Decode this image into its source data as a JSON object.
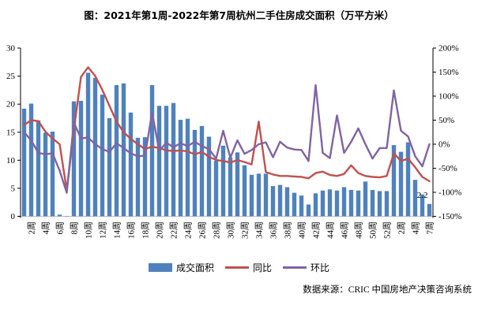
{
  "title": "图：2021年第1周-2022年第7周杭州二手住房成交面积（万平方米）",
  "source": "数据来源：CRIC 中国房地产决策咨询系统",
  "colors": {
    "bar": "#4F81BD",
    "yoy_line": "#C0504D",
    "wow_line": "#8064A2",
    "axis": "#000000",
    "baseline": "#bfbfbf"
  },
  "legend": [
    {
      "label": "成交面积",
      "type": "bar"
    },
    {
      "label": "同比",
      "type": "line"
    },
    {
      "label": "环比",
      "type": "line"
    }
  ],
  "chart_data": {
    "type": "bar",
    "title": "图：2021年第1周-2022年第7周杭州二手住房成交面积（万平方米）",
    "categories": [
      "2021-01",
      "2021-02",
      "2021-03",
      "2021-04",
      "2021-05",
      "2021-06",
      "2021-07",
      "2021-08",
      "2021-09",
      "2021-10",
      "2021-11",
      "2021-12",
      "2021-13",
      "2021-14",
      "2021-15",
      "2021-16",
      "2021-17",
      "2021-18",
      "2021-19",
      "2021-20",
      "2021-21",
      "2021-22",
      "2021-23",
      "2021-24",
      "2021-25",
      "2021-26",
      "2021-27",
      "2021-28",
      "2021-29",
      "2021-30",
      "2021-31",
      "2021-32",
      "2021-33",
      "2021-34",
      "2021-35",
      "2021-36",
      "2021-37",
      "2021-38",
      "2021-39",
      "2021-40",
      "2021-41",
      "2021-42",
      "2021-43",
      "2021-44",
      "2021-45",
      "2021-46",
      "2021-47",
      "2021-48",
      "2021-49",
      "2021-50",
      "2021-51",
      "2021-52",
      "2022-01",
      "2022-02",
      "2022-03",
      "2022-04",
      "2022-06",
      "2022-07"
    ],
    "x_tick_labels": [
      "2周",
      "4周",
      "6周",
      "8周",
      "10周",
      "12周",
      "14周",
      "16周",
      "18周",
      "20周",
      "22周",
      "24周",
      "26周",
      "28周",
      "30周",
      "32周",
      "34周",
      "36周",
      "38周",
      "40周",
      "42周",
      "44周",
      "46周",
      "48周",
      "50周",
      "52周",
      "2周",
      "4周",
      "7周"
    ],
    "series": [
      {
        "name": "成交面积",
        "type": "bar",
        "axis": "left",
        "values": [
          19.2,
          20.1,
          17.1,
          14.9,
          15.1,
          0.3,
          0.05,
          20.5,
          20.6,
          25.6,
          24.7,
          21.7,
          17.5,
          23.4,
          23.7,
          18.5,
          14.0,
          14.1,
          23.4,
          19.7,
          19.7,
          20.2,
          17.2,
          17.4,
          15.4,
          16.1,
          14.2,
          9.9,
          12.6,
          10.5,
          11.4,
          9.1,
          7.4,
          7.6,
          7.6,
          5.4,
          5.6,
          5.2,
          4.2,
          3.7,
          2.1,
          4.1,
          4.6,
          4.8,
          4.6,
          5.2,
          4.7,
          4.6,
          6.2,
          4.7,
          4.5,
          4.5,
          12.7,
          11.5,
          13.2,
          6.5,
          3.9,
          2.2
        ]
      },
      {
        "name": "同比",
        "type": "line",
        "axis": "right",
        "values": [
          40,
          50,
          48,
          26,
          12,
          0,
          -96,
          30,
          140,
          160,
          142,
          113,
          80,
          47,
          25,
          11,
          0,
          -10,
          -5,
          -8,
          -13,
          -14,
          -13,
          -15,
          -21,
          -16,
          -26,
          -33,
          -35,
          -38,
          -33,
          -37,
          -42,
          47,
          -58,
          -63,
          -66,
          -66,
          -67,
          -68,
          -71,
          -60,
          -57,
          -64,
          -66,
          -62,
          -44,
          -60,
          -66,
          -68,
          -69,
          -66,
          -19,
          -35,
          -30,
          -48,
          -68,
          -77
        ]
      },
      {
        "name": "环比",
        "type": "line",
        "axis": "right",
        "values": [
          25,
          8,
          -18,
          -21,
          -19,
          -55,
          -101,
          45,
          12,
          14,
          0,
          -10,
          -16,
          2,
          -8,
          -19,
          -25,
          -24,
          66,
          -14,
          3,
          -6,
          2,
          -4,
          5,
          -4,
          -10,
          -30,
          28,
          -28,
          8,
          -20,
          -12,
          0,
          4,
          -27,
          5,
          -7,
          -11,
          -12,
          -35,
          123,
          -18,
          -29,
          60,
          -18,
          5,
          33,
          0,
          -30,
          -8,
          -8,
          112,
          28,
          16,
          -25,
          -46,
          0
        ]
      }
    ],
    "left_axis": {
      "min": 0,
      "max": 30,
      "step": 5,
      "ticks": [
        "0",
        "5",
        "10",
        "15",
        "20",
        "25",
        "30"
      ]
    },
    "right_axis": {
      "min": -150,
      "max": 200,
      "step": 50,
      "ticks": [
        "-150%",
        "-100%",
        "-50%",
        "0%",
        "50%",
        "100%",
        "150%",
        "200%"
      ]
    },
    "grid": false,
    "legend_position": "bottom",
    "annotation": {
      "text": "2.2",
      "index": 57
    }
  }
}
